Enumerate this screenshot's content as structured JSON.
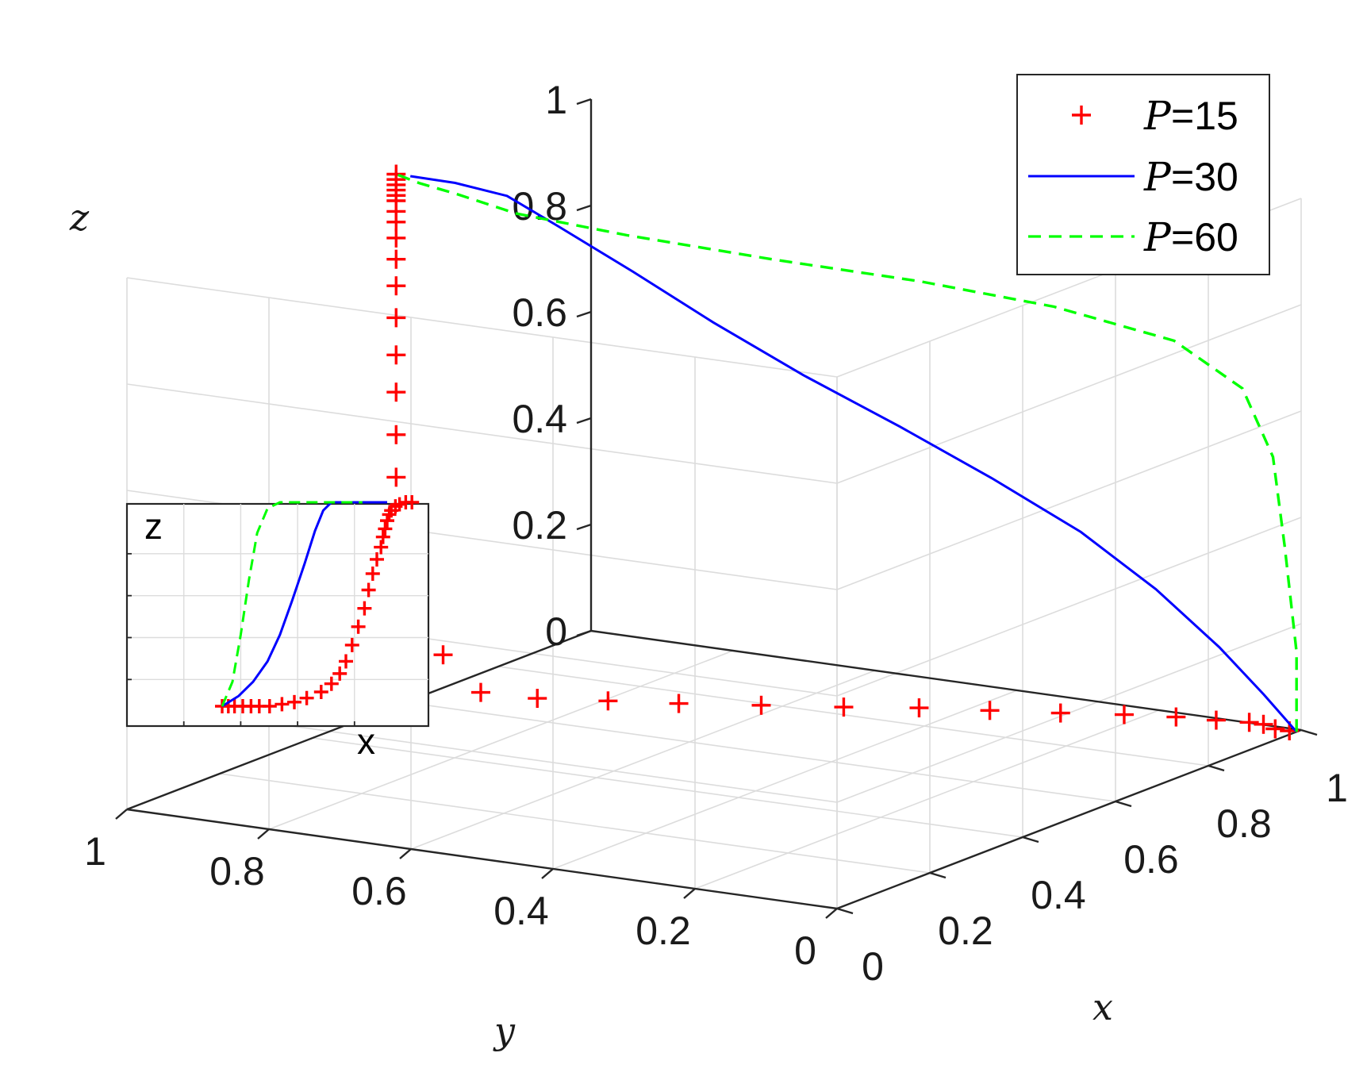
{
  "chart_data": {
    "type": "line3d",
    "title": "",
    "xlabel": "x",
    "ylabel": "y",
    "zlabel": "z",
    "xlim": [
      0,
      1
    ],
    "ylim": [
      0,
      1
    ],
    "zlim": [
      0,
      1
    ],
    "grid": true,
    "x_ticks": [
      "0",
      "0.2",
      "0.4",
      "0.6",
      "0.8",
      "1"
    ],
    "y_ticks": [
      "1",
      "0.8",
      "0.6",
      "0.4",
      "0.2",
      "0"
    ],
    "z_ticks": [
      "0",
      "0.2",
      "0.4",
      "0.6",
      "0.8",
      "1"
    ],
    "legend_position": "top-right",
    "series": [
      {
        "name": "P=15",
        "legend_symbol": "P",
        "legend_value": "=15",
        "style": "markers-plus",
        "color": "#ff0000",
        "points": [
          [
            0.99,
            0.01,
            0.0
          ],
          [
            0.99,
            0.03,
            0.0
          ],
          [
            0.98,
            0.04,
            0.01
          ],
          [
            0.98,
            0.06,
            0.01
          ],
          [
            0.97,
            0.1,
            0.01
          ],
          [
            0.96,
            0.15,
            0.01
          ],
          [
            0.94,
            0.21,
            0.01
          ],
          [
            0.91,
            0.28,
            0.01
          ],
          [
            0.88,
            0.36,
            0.01
          ],
          [
            0.85,
            0.44,
            0.01
          ],
          [
            0.81,
            0.52,
            0.01
          ],
          [
            0.77,
            0.61,
            0.01
          ],
          [
            0.73,
            0.7,
            0.01
          ],
          [
            0.7,
            0.78,
            0.01
          ],
          [
            0.67,
            0.86,
            0.01
          ],
          [
            0.64,
            0.92,
            0.02
          ],
          [
            0.62,
            0.96,
            0.09
          ],
          [
            0.6,
            0.98,
            0.18
          ],
          [
            0.59,
            0.99,
            0.27
          ],
          [
            0.58,
            0.99,
            0.35
          ],
          [
            0.58,
            1.0,
            0.43
          ],
          [
            0.58,
            1.0,
            0.51
          ],
          [
            0.58,
            1.0,
            0.59
          ],
          [
            0.58,
            1.0,
            0.66
          ],
          [
            0.58,
            1.0,
            0.73
          ],
          [
            0.58,
            1.0,
            0.79
          ],
          [
            0.58,
            1.0,
            0.84
          ],
          [
            0.58,
            1.0,
            0.88
          ],
          [
            0.58,
            1.0,
            0.91
          ],
          [
            0.58,
            1.0,
            0.93
          ],
          [
            0.58,
            1.0,
            0.95
          ],
          [
            0.58,
            1.0,
            0.96
          ],
          [
            0.58,
            1.0,
            0.97
          ],
          [
            0.58,
            1.0,
            0.98
          ],
          [
            0.58,
            1.0,
            0.99
          ],
          [
            0.58,
            1.0,
            1.0
          ]
        ]
      },
      {
        "name": "P=30",
        "legend_symbol": "P",
        "legend_value": "=30",
        "style": "solid",
        "color": "#0000ff",
        "points": [
          [
            0.99,
            0.0,
            0.0
          ],
          [
            0.95,
            0.02,
            0.08
          ],
          [
            0.9,
            0.05,
            0.18
          ],
          [
            0.84,
            0.1,
            0.3
          ],
          [
            0.77,
            0.16,
            0.42
          ],
          [
            0.7,
            0.24,
            0.53
          ],
          [
            0.64,
            0.33,
            0.63
          ],
          [
            0.6,
            0.44,
            0.72
          ],
          [
            0.59,
            0.56,
            0.8
          ],
          [
            0.6,
            0.68,
            0.87
          ],
          [
            0.61,
            0.79,
            0.93
          ],
          [
            0.62,
            0.87,
            0.97
          ],
          [
            0.6,
            0.93,
            0.99
          ],
          [
            0.58,
            0.98,
            1.0
          ]
        ]
      },
      {
        "name": "P=60",
        "legend_symbol": "P",
        "legend_value": "=60",
        "style": "dashed",
        "color": "#00ff00",
        "points": [
          [
            0.99,
            0.0,
            0.0
          ],
          [
            0.99,
            0.0,
            0.15
          ],
          [
            0.98,
            0.01,
            0.35
          ],
          [
            0.97,
            0.02,
            0.52
          ],
          [
            0.95,
            0.05,
            0.65
          ],
          [
            0.91,
            0.12,
            0.74
          ],
          [
            0.85,
            0.25,
            0.8
          ],
          [
            0.79,
            0.4,
            0.84
          ],
          [
            0.73,
            0.57,
            0.87
          ],
          [
            0.68,
            0.74,
            0.9
          ],
          [
            0.64,
            0.87,
            0.93
          ],
          [
            0.62,
            0.94,
            0.96
          ],
          [
            0.6,
            0.98,
            0.98
          ],
          [
            0.58,
            1.0,
            1.0
          ]
        ]
      }
    ],
    "inset": {
      "xlabel": "x",
      "zlabel": "z",
      "series": [
        {
          "name": "P=15",
          "style": "markers-plus",
          "color": "#ff0000",
          "points": [
            [
              0.0,
              0.0
            ],
            [
              0.03,
              0.0
            ],
            [
              0.06,
              0.0
            ],
            [
              0.1,
              0.0
            ],
            [
              0.14,
              0.0
            ],
            [
              0.18,
              0.0
            ],
            [
              0.23,
              0.0
            ],
            [
              0.29,
              0.01
            ],
            [
              0.35,
              0.02
            ],
            [
              0.41,
              0.04
            ],
            [
              0.48,
              0.07
            ],
            [
              0.53,
              0.11
            ],
            [
              0.57,
              0.16
            ],
            [
              0.6,
              0.22
            ],
            [
              0.63,
              0.3
            ],
            [
              0.66,
              0.39
            ],
            [
              0.69,
              0.48
            ],
            [
              0.71,
              0.57
            ],
            [
              0.73,
              0.65
            ],
            [
              0.75,
              0.72
            ],
            [
              0.77,
              0.78
            ],
            [
              0.78,
              0.83
            ],
            [
              0.79,
              0.87
            ],
            [
              0.8,
              0.91
            ],
            [
              0.81,
              0.94
            ],
            [
              0.82,
              0.96
            ],
            [
              0.84,
              0.98
            ],
            [
              0.86,
              0.99
            ],
            [
              0.89,
              1.0
            ],
            [
              0.92,
              1.0
            ]
          ]
        },
        {
          "name": "P=30",
          "style": "solid",
          "color": "#0000ff",
          "points": [
            [
              0.0,
              0.0
            ],
            [
              0.08,
              0.05
            ],
            [
              0.15,
              0.12
            ],
            [
              0.22,
              0.22
            ],
            [
              0.28,
              0.35
            ],
            [
              0.34,
              0.52
            ],
            [
              0.4,
              0.7
            ],
            [
              0.45,
              0.86
            ],
            [
              0.49,
              0.96
            ],
            [
              0.53,
              1.0
            ],
            [
              0.58,
              1.0
            ],
            [
              0.68,
              1.0
            ],
            [
              0.8,
              1.0
            ]
          ]
        },
        {
          "name": "P=60",
          "style": "dashed",
          "color": "#00ff00",
          "points": [
            [
              0.0,
              0.0
            ],
            [
              0.05,
              0.12
            ],
            [
              0.09,
              0.35
            ],
            [
              0.13,
              0.62
            ],
            [
              0.17,
              0.85
            ],
            [
              0.22,
              0.97
            ],
            [
              0.28,
              1.0
            ],
            [
              0.4,
              1.0
            ],
            [
              0.55,
              1.0
            ],
            [
              0.68,
              1.0
            ]
          ]
        }
      ]
    }
  }
}
